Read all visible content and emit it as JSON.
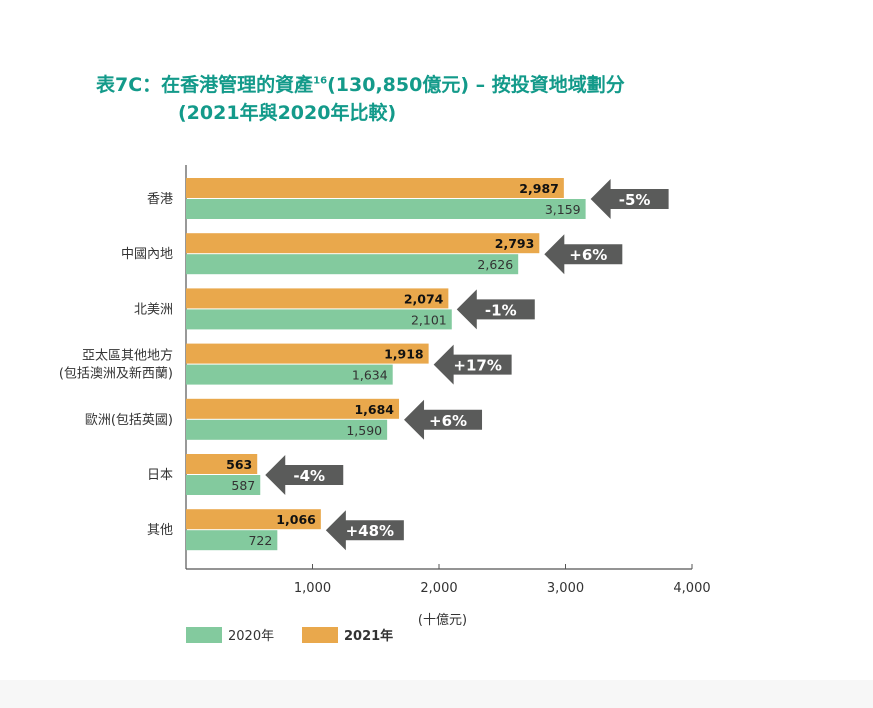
{
  "chart_data": {
    "type": "bar",
    "orientation": "horizontal",
    "title_line1": "表7C：在香港管理的資產",
    "title_superscript": "16",
    "title_line1_rest": "(130,850億元) – 按投資地域劃分",
    "title_line2": "(2021年與2020年比較)",
    "xlabel": "(十億元)",
    "xlim": [
      0,
      4000
    ],
    "xticks": [
      "1,000",
      "2,000",
      "3,000",
      "4,000"
    ],
    "xtick_values": [
      1000,
      2000,
      3000,
      4000
    ],
    "grid": false,
    "legend_position": "bottom-left",
    "categories": [
      [
        "香港"
      ],
      [
        "中國內地"
      ],
      [
        "北美洲"
      ],
      [
        "亞太區其他地方",
        "(包括澳洲及新西蘭)"
      ],
      [
        "歐洲(包括英國)"
      ],
      [
        "日本"
      ],
      [
        "其他"
      ]
    ],
    "series": [
      {
        "name": "2021年",
        "color": "#e9a84c",
        "values": [
          2987,
          2793,
          2074,
          1918,
          1684,
          563,
          1066
        ],
        "labels": [
          "2,987",
          "2,793",
          "2,074",
          "1,918",
          "1,684",
          "563",
          "1,066"
        ]
      },
      {
        "name": "2020年",
        "color": "#83ca9e",
        "values": [
          3159,
          2626,
          2101,
          1634,
          1590,
          587,
          722
        ],
        "labels": [
          "3,159",
          "2,626",
          "2,101",
          "1,634",
          "1,590",
          "587",
          "722"
        ]
      }
    ],
    "change_labels": [
      "-5%",
      "+6%",
      "-1%",
      "+17%",
      "+6%",
      "-4%",
      "+48%"
    ],
    "arrow_color": "#5a5b5a"
  }
}
